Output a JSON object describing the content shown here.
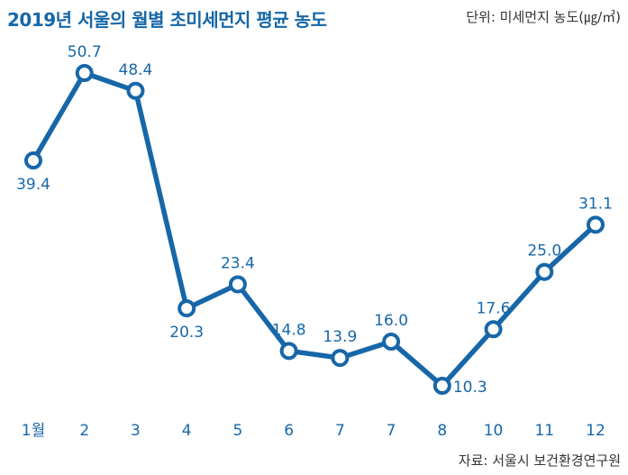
{
  "title": "2019년 서울의 월별 초미세먼지 평균 농도",
  "unit_label": "단위: 미세먼지 농도(㎍/㎥)",
  "source_label": "자료: 서울시 보건환경연구원",
  "colors": {
    "accent": "#1767a8",
    "marker_fill": "#ffffff",
    "text": "#333333"
  },
  "chart_data": {
    "type": "line",
    "title": "2019년 서울의 월별 초미세먼지 평균 농도",
    "categories": [
      "1월",
      "2",
      "3",
      "4",
      "5",
      "6",
      "7",
      "7",
      "8",
      "10",
      "11",
      "12"
    ],
    "series": [
      {
        "values": [
          39.4,
          50.7,
          48.4,
          20.3,
          23.4,
          14.8,
          13.9,
          16.0,
          10.3,
          17.6,
          25.0,
          31.1
        ]
      }
    ],
    "value_labels": [
      "39.4",
      "50.7",
      "48.4",
      "20.3",
      "23.4",
      "14.8",
      "13.9",
      "16.0",
      "10.3",
      "17.6",
      "25.0",
      "31.1"
    ],
    "label_position": [
      "below",
      "above",
      "above",
      "below",
      "above",
      "above",
      "above",
      "above",
      "right",
      "above",
      "above",
      "above"
    ],
    "ylim": [
      10.3,
      50.7
    ],
    "grid": false,
    "legend": "none"
  }
}
